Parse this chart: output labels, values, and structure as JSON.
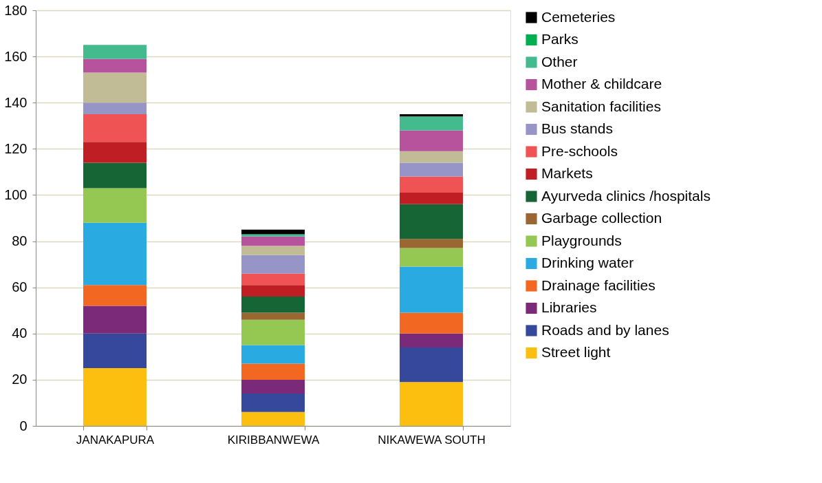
{
  "chart_data": {
    "type": "bar",
    "stacked": true,
    "categories": [
      "JANAKAPURA",
      "KIRIBBANWEWA",
      "NIKAWEWA SOUTH"
    ],
    "ylim": [
      0,
      180
    ],
    "yticks": [
      0,
      20,
      40,
      60,
      80,
      100,
      120,
      140,
      160,
      180
    ],
    "grid": "y",
    "legend": "right",
    "series": [
      {
        "name": "Street light",
        "color": "#fcbf10",
        "values": [
          25,
          6,
          19
        ]
      },
      {
        "name": "Roads and by lanes",
        "color": "#35489c",
        "values": [
          15,
          8,
          15
        ]
      },
      {
        "name": "Libraries",
        "color": "#7b2a7a",
        "values": [
          12,
          6,
          6
        ]
      },
      {
        "name": "Drainage facilities",
        "color": "#f26722",
        "values": [
          9,
          7,
          9
        ]
      },
      {
        "name": "Drinking water",
        "color": "#29abe2",
        "values": [
          27,
          8,
          20
        ]
      },
      {
        "name": "Playgrounds",
        "color": "#95c853",
        "values": [
          15,
          11,
          8
        ]
      },
      {
        "name": "Garbage collection",
        "color": "#9a6632",
        "values": [
          0,
          3,
          4
        ]
      },
      {
        "name": "Ayurveda clinics /hospitals",
        "color": "#166635",
        "values": [
          11,
          7,
          15
        ]
      },
      {
        "name": "Markets",
        "color": "#be1e24",
        "values": [
          9,
          5,
          5
        ]
      },
      {
        "name": "Pre-schools",
        "color": "#ef5353",
        "values": [
          12,
          5,
          7
        ]
      },
      {
        "name": "Bus stands",
        "color": "#9795c8",
        "values": [
          5,
          8,
          6
        ]
      },
      {
        "name": "Sanitation facilities",
        "color": "#c1bc95",
        "values": [
          13,
          4,
          5
        ]
      },
      {
        "name": "Mother & childcare",
        "color": "#b7529d",
        "values": [
          6,
          4,
          9
        ]
      },
      {
        "name": "Other",
        "color": "#44bb8f",
        "values": [
          6,
          1,
          6
        ]
      },
      {
        "name": "Parks",
        "color": "#00b050",
        "values": [
          0,
          0,
          0
        ]
      },
      {
        "name": "Cemeteries",
        "color": "#000000",
        "values": [
          0,
          2,
          1
        ]
      }
    ]
  }
}
